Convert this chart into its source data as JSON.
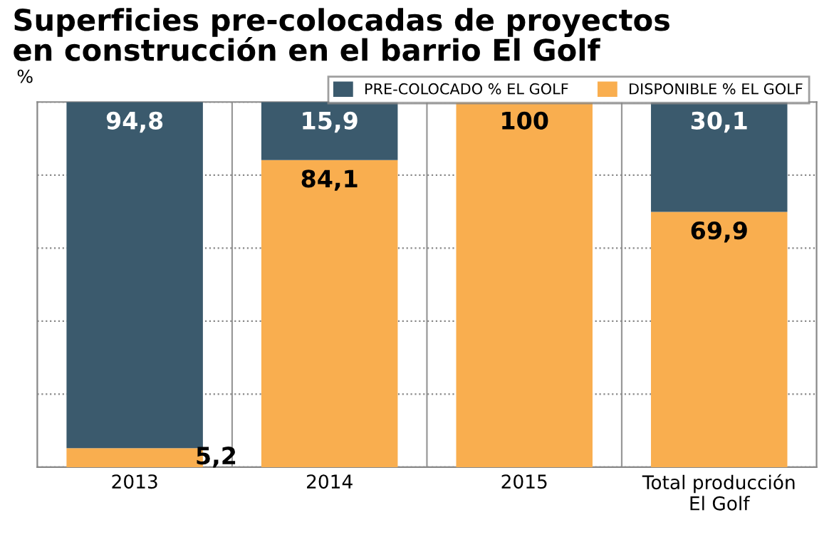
{
  "chart_data": {
    "type": "bar",
    "title": "Superficies pre-colocadas de proyectos\nen construcción en el barrio El Golf",
    "ylabel": "%",
    "categories": [
      "2013",
      "2014",
      "2015",
      "Total producción\nEl Golf"
    ],
    "stacked": true,
    "series": [
      {
        "name": "DISPONIBLE % EL GOLF",
        "color": "#f9ae4f",
        "values": [
          5.2,
          84.1,
          100,
          69.9
        ],
        "value_labels": [
          "5,2",
          "84,1",
          "100",
          "69,9"
        ]
      },
      {
        "name": "PRE-COLOCADO % EL GOLF",
        "color": "#3b5a6d",
        "values": [
          94.8,
          15.9,
          0,
          30.1
        ],
        "value_labels": [
          "94,8",
          "15,9",
          null,
          "30,1"
        ]
      }
    ],
    "ylim": [
      0,
      100
    ],
    "yticks": [
      {
        "value": 0,
        "label": null
      },
      {
        "value": 20,
        "label": null
      },
      {
        "value": 40,
        "label": null
      },
      {
        "value": 60,
        "label": null
      },
      {
        "value": 80,
        "label": null
      },
      {
        "value": 100,
        "label": null
      }
    ],
    "grid": "y",
    "legend": "top right",
    "tick_labels": "x"
  }
}
